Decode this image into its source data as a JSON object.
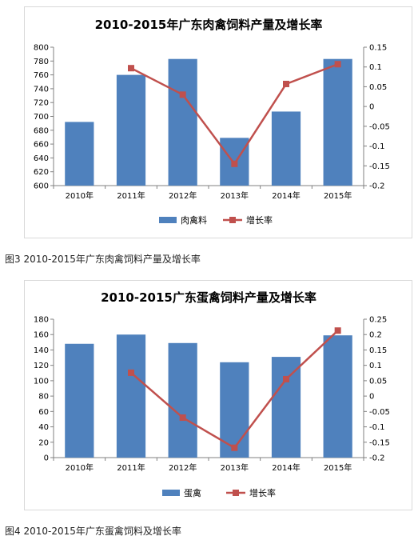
{
  "chart_data": [
    {
      "type": "bar",
      "title": "2010-2015年广东肉禽饲料产量及增长率",
      "categories": [
        "2010年",
        "2011年",
        "2012年",
        "2013年",
        "2014年",
        "2015年"
      ],
      "series": [
        {
          "name": "肉禽料",
          "type": "bar",
          "axis": "left",
          "values": [
            692,
            760,
            783,
            669,
            707,
            783
          ]
        },
        {
          "name": "增长率",
          "type": "line",
          "axis": "right",
          "values": [
            null,
            0.097,
            0.03,
            -0.145,
            0.057,
            0.107
          ]
        }
      ],
      "ylim": [
        600,
        800
      ],
      "y_ticks": [
        "800",
        "780",
        "760",
        "740",
        "720",
        "700",
        "680",
        "660",
        "640",
        "620",
        "600"
      ],
      "y2lim": [
        -0.2,
        0.15
      ],
      "y2_ticks": [
        "0.15",
        "0.1",
        "0.05",
        "0",
        "-0.05",
        "-0.1",
        "-0.15",
        "-0.2"
      ],
      "legend_position": "bottom",
      "colors": {
        "bar": "#4f81bd",
        "line": "#c0504d"
      }
    },
    {
      "type": "bar",
      "title": "2010-2015广东蛋禽饲料产量及增长率",
      "categories": [
        "2010年",
        "2011年",
        "2012年",
        "2013年",
        "2014年",
        "2015年"
      ],
      "series": [
        {
          "name": "蛋禽",
          "type": "bar",
          "axis": "left",
          "values": [
            148,
            160,
            149,
            124,
            131,
            159
          ]
        },
        {
          "name": "增长率",
          "type": "line",
          "axis": "right",
          "values": [
            null,
            0.076,
            -0.07,
            -0.168,
            0.055,
            0.213
          ]
        }
      ],
      "ylim": [
        0,
        180
      ],
      "y_ticks": [
        "180",
        "160",
        "140",
        "120",
        "100",
        "80",
        "60",
        "40",
        "20",
        "0"
      ],
      "y2lim": [
        -0.2,
        0.25
      ],
      "y2_ticks": [
        "0.25",
        "0.2",
        "0.15",
        "0.1",
        "0.05",
        "0",
        "-0.05",
        "-0.1",
        "-0.15",
        "-0.2"
      ],
      "legend_position": "bottom",
      "colors": {
        "bar": "#4f81bd",
        "line": "#c0504d"
      }
    }
  ],
  "captions": [
    "图3 2010-2015年广东肉禽饲料产量及增长率",
    "图4 2010-2015年广东蛋禽饲料及增长率"
  ]
}
